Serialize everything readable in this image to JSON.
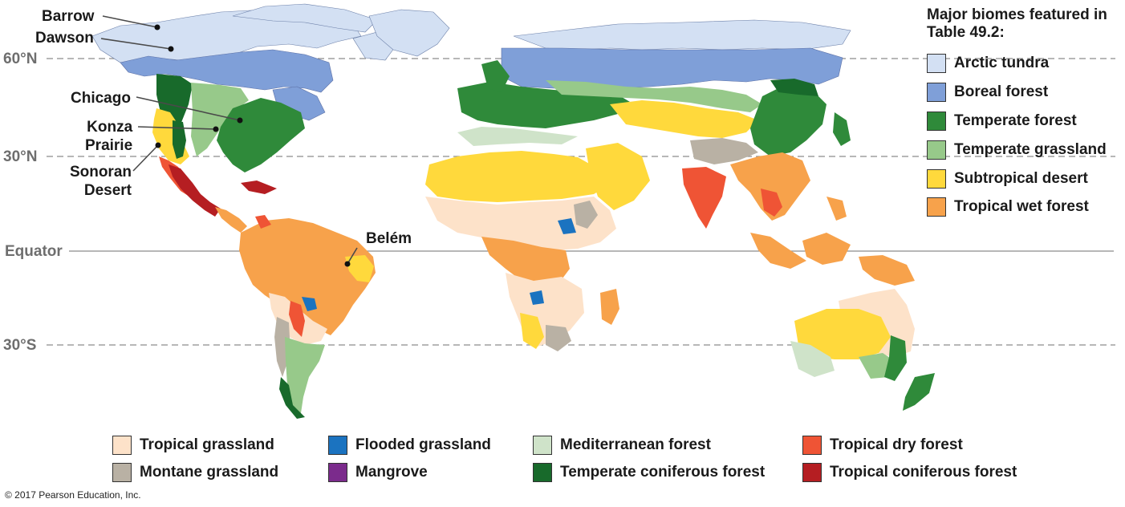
{
  "latitudes": {
    "n60": "60°N",
    "n30": "30°N",
    "equator": "Equator",
    "s30": "30°S"
  },
  "locations": [
    {
      "id": "barrow",
      "label": "Barrow"
    },
    {
      "id": "dawson",
      "label": "Dawson"
    },
    {
      "id": "chicago",
      "label": "Chicago"
    },
    {
      "id": "konza",
      "label": "Konza\nPrairie"
    },
    {
      "id": "sonoran",
      "label": "Sonoran\nDesert"
    },
    {
      "id": "belem",
      "label": "Belém"
    }
  ],
  "legend": {
    "title": "Major biomes featured in Table 49.2:",
    "items": [
      {
        "label": "Arctic tundra",
        "color": "#d3e0f3"
      },
      {
        "label": "Boreal forest",
        "color": "#7f9fd8"
      },
      {
        "label": "Temperate forest",
        "color": "#2f8a3a"
      },
      {
        "label": "Temperate grassland",
        "color": "#97c98a"
      },
      {
        "label": "Subtropical desert",
        "color": "#ffd93c"
      },
      {
        "label": "Tropical wet forest",
        "color": "#f7a24b"
      }
    ]
  },
  "other_biomes": [
    {
      "label": "Tropical grassland",
      "color": "#fde2c9"
    },
    {
      "label": "Flooded grassland",
      "color": "#1b73c0"
    },
    {
      "label": "Mediterranean forest",
      "color": "#cfe3c9"
    },
    {
      "label": "Tropical dry forest",
      "color": "#ef5435"
    },
    {
      "label": "Montane grassland",
      "color": "#b9b1a4"
    },
    {
      "label": "Mangrove",
      "color": "#7b2b8c"
    },
    {
      "label": "Temperate coniferous forest",
      "color": "#186a2b"
    },
    {
      "label": "Tropical coniferous forest",
      "color": "#b51e22"
    }
  ],
  "credit": "© 2017 Pearson Education, Inc."
}
